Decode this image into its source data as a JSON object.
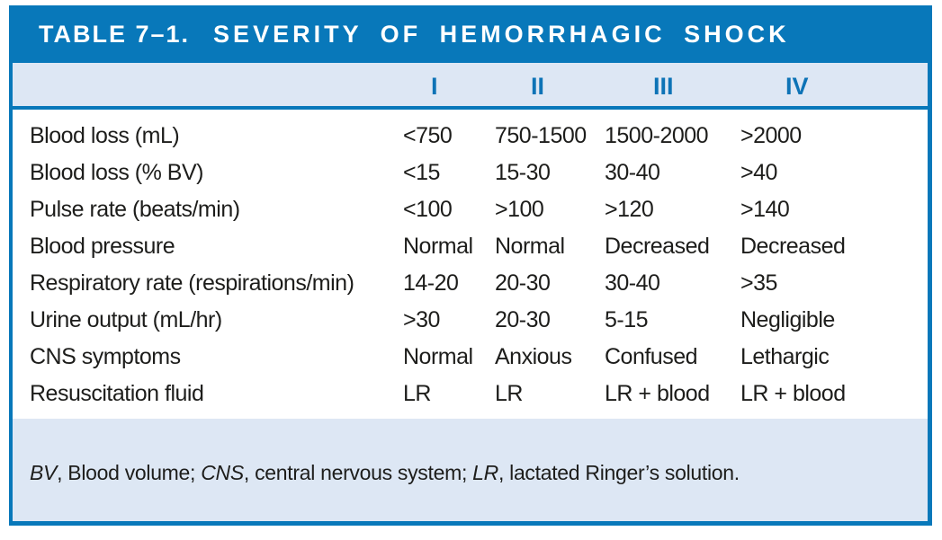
{
  "title": {
    "number": "TABLE 7–1.",
    "text": "SEVERITY OF HEMORRHAGIC SHOCK"
  },
  "table": {
    "columns": [
      "I",
      "II",
      "III",
      "IV"
    ],
    "rows": [
      {
        "label": "Blood loss (mL)",
        "values": [
          "<750",
          "750-1500",
          "1500-2000",
          ">2000"
        ]
      },
      {
        "label": "Blood loss (% BV)",
        "values": [
          "<15",
          "15-30",
          "30-40",
          ">40"
        ]
      },
      {
        "label": "Pulse rate (beats/min)",
        "values": [
          "<100",
          ">100",
          ">120",
          ">140"
        ]
      },
      {
        "label": "Blood pressure",
        "values": [
          "Normal",
          "Normal",
          "Decreased",
          "Decreased"
        ]
      },
      {
        "label": "Respiratory rate (respirations/min)",
        "values": [
          "14-20",
          "20-30",
          "30-40",
          ">35"
        ]
      },
      {
        "label": "Urine output (mL/hr)",
        "values": [
          ">30",
          "20-30",
          "5-15",
          "Negligible"
        ]
      },
      {
        "label": "CNS symptoms",
        "values": [
          "Normal",
          "Anxious",
          "Confused",
          "Lethargic"
        ]
      },
      {
        "label": "Resuscitation fluid",
        "values": [
          "LR",
          "LR",
          "LR + blood",
          "LR + blood"
        ]
      }
    ]
  },
  "footnote": {
    "segments": [
      {
        "text": "BV"
      },
      {
        "text": ", Blood volume; "
      },
      {
        "text": "CNS"
      },
      {
        "text": ", central nervous system; "
      },
      {
        "text": "LR"
      },
      {
        "text": ", lactated Ringer’s solution."
      }
    ]
  },
  "colors": {
    "accent_blue": "#0878ba",
    "band_light_blue": "#dde7f4",
    "numeral_blue": "#0d73b6",
    "text_black": "#1d1d1b"
  }
}
